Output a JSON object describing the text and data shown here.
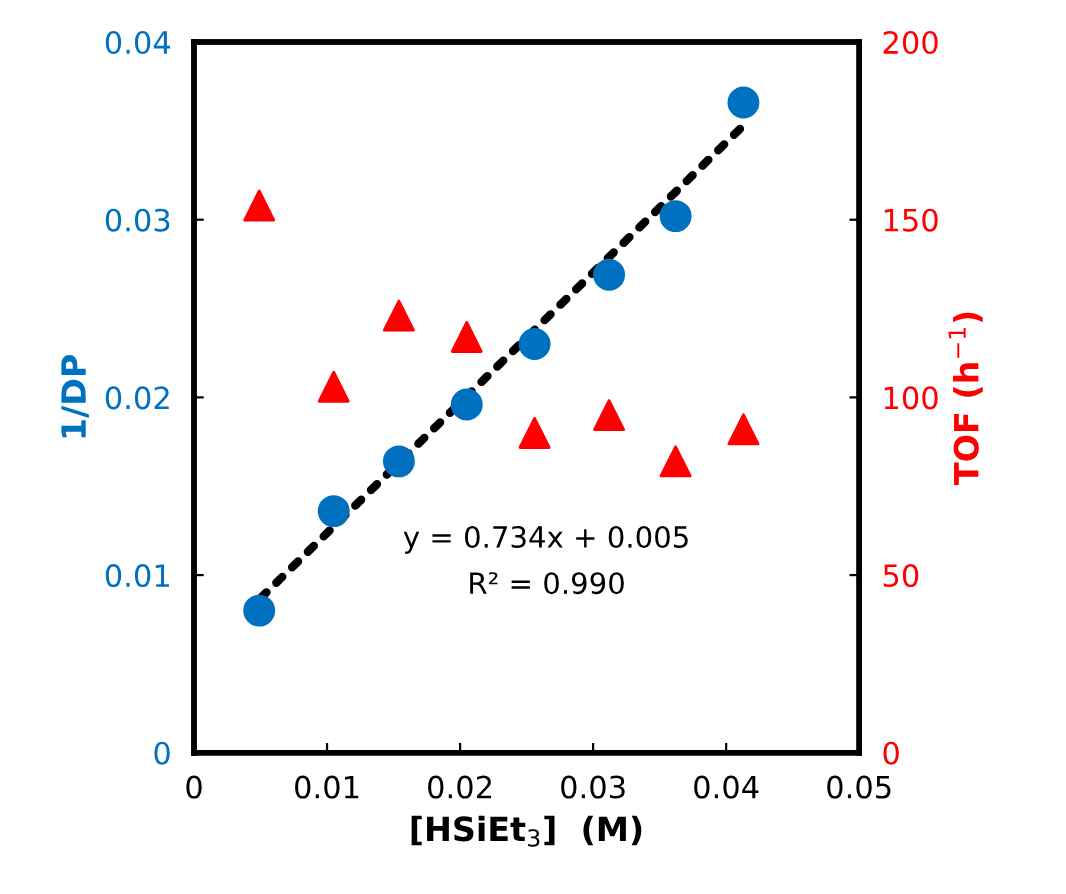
{
  "chart_data": {
    "type": "scatter",
    "xlabel": "[HSiEt$_{3}$]  (M)",
    "ylabel": "1/DP",
    "y2label": "TOF (h$^{−1}$)",
    "x": [
      0.0049,
      0.0105,
      0.0154,
      0.0205,
      0.0256,
      0.0312,
      0.0362,
      0.0413
    ],
    "series": [
      {
        "color": "#0070c0",
        "marker": "circle",
        "values": [
          0.008,
          0.0136,
          0.0164,
          0.0196,
          0.023,
          0.0269,
          0.0302,
          0.0366
        ]
      },
      {
        "color": "#ff0000",
        "marker": "triangle",
        "axis": "y2",
        "values": [
          154,
          103,
          123,
          117,
          90,
          95,
          82,
          91
        ]
      },
      {
        "type": "line",
        "color": "#000000",
        "line_style": "dotted",
        "x": [
          0.005,
          0.0413
        ],
        "values": [
          0.0087,
          0.0353
        ]
      }
    ],
    "annotations": [
      "y = 0.734x + 0.005",
      "R² = 0.990"
    ],
    "xlim": [
      0,
      0.05
    ],
    "xticks": [
      0,
      0.01,
      0.02,
      0.03,
      0.04,
      0.05
    ],
    "ylim": [
      0,
      0.04
    ],
    "yticks": [
      0,
      0.01,
      0.02,
      0.03,
      0.04
    ],
    "y2lim": [
      0,
      200
    ],
    "y2ticks": [
      0,
      50,
      100,
      150,
      200
    ],
    "grid": false,
    "legend": false
  }
}
